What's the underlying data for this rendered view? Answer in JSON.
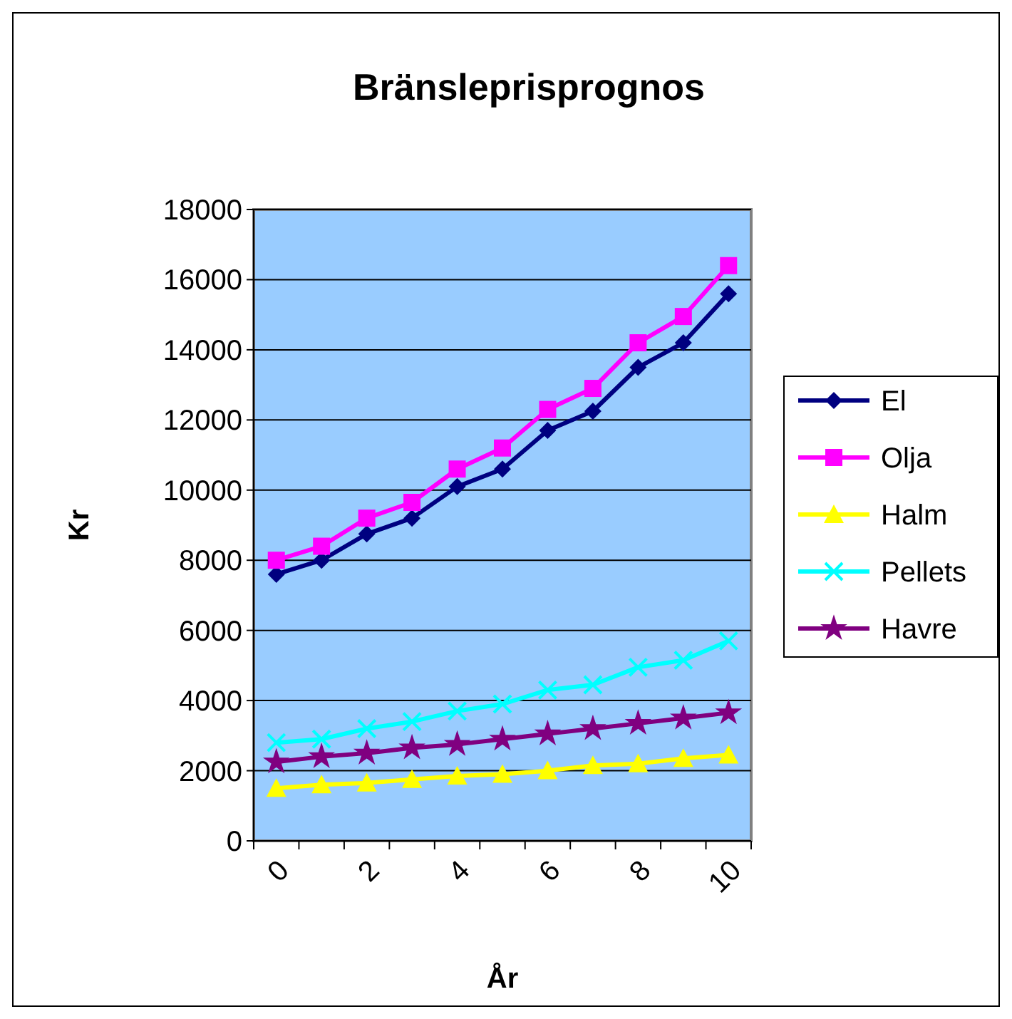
{
  "chart_data": {
    "type": "line",
    "title": "Bränsleprisprognos",
    "xlabel": "År",
    "ylabel": "Kr",
    "categories": [
      "0",
      null,
      "2",
      null,
      "4",
      null,
      "6",
      null,
      "8",
      null,
      "10"
    ],
    "ylim": [
      0,
      18000
    ],
    "yticks": [
      0,
      2000,
      4000,
      6000,
      8000,
      10000,
      12000,
      14000,
      16000,
      18000
    ],
    "grid": "y",
    "legend": "right",
    "series": [
      {
        "name": "El",
        "color": "#000080",
        "marker": "diamond",
        "values": [
          7600,
          8000,
          8750,
          9200,
          10100,
          10600,
          11700,
          12250,
          13500,
          14200,
          15600
        ]
      },
      {
        "name": "Olja",
        "color": "#ff00ff",
        "marker": "square",
        "values": [
          8000,
          8400,
          9200,
          9650,
          10600,
          11200,
          12300,
          12900,
          14200,
          14950,
          16400
        ]
      },
      {
        "name": "Halm",
        "color": "#ffff00",
        "marker": "triangle",
        "values": [
          1500,
          1600,
          1650,
          1750,
          1850,
          1900,
          2000,
          2150,
          2200,
          2350,
          2450
        ]
      },
      {
        "name": "Pellets",
        "color": "#00ffff",
        "marker": "cross",
        "values": [
          2800,
          2900,
          3200,
          3400,
          3700,
          3900,
          4300,
          4450,
          4950,
          5150,
          5700
        ]
      },
      {
        "name": "Havre",
        "color": "#800080",
        "marker": "star",
        "values": [
          2250,
          2400,
          2500,
          2650,
          2750,
          2900,
          3050,
          3200,
          3350,
          3500,
          3650
        ]
      }
    ]
  }
}
